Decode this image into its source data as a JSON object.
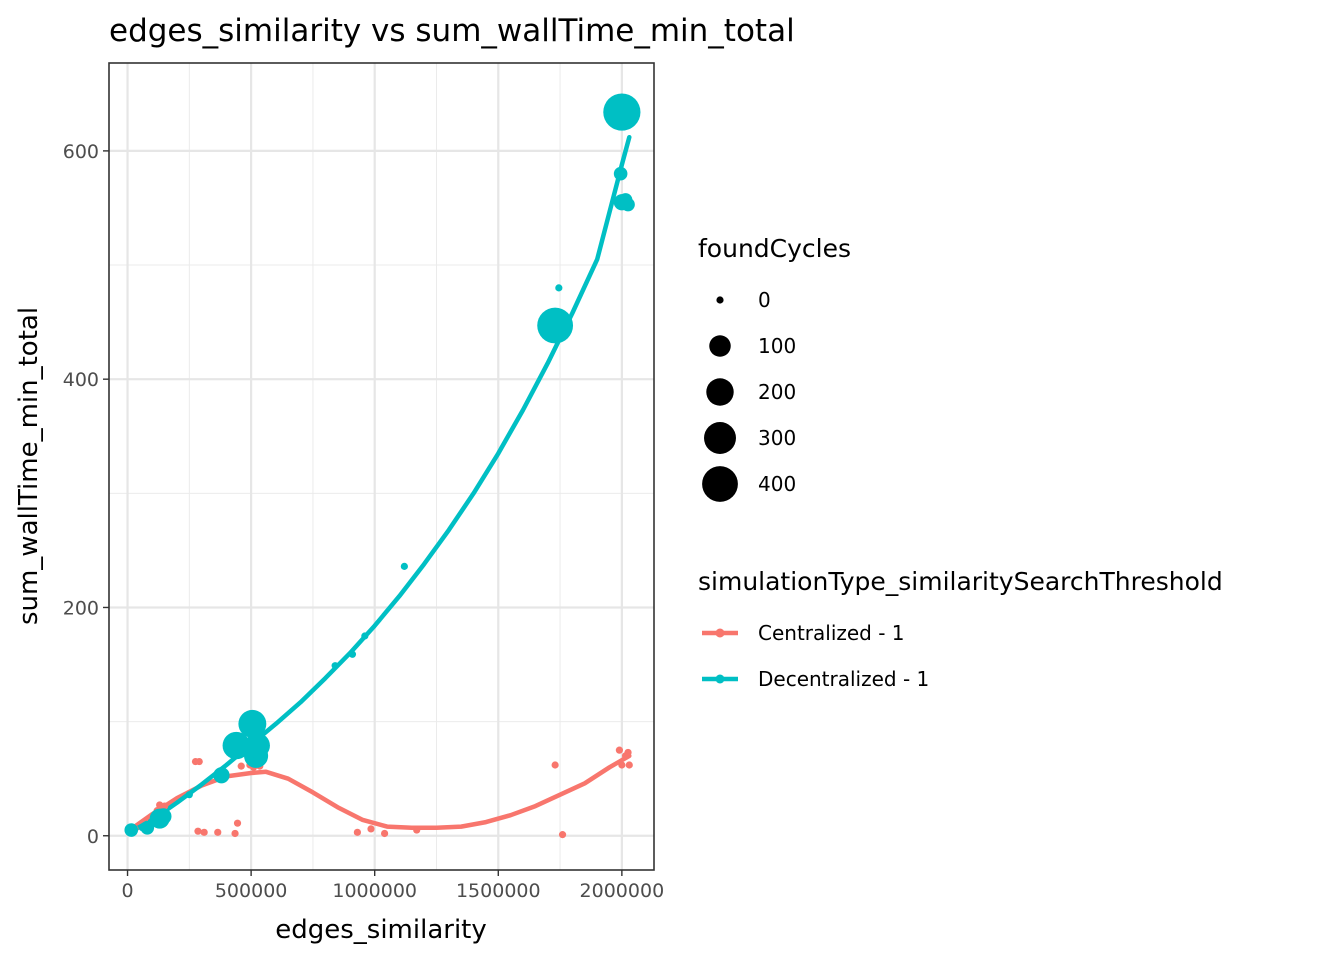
{
  "chart_data": {
    "type": "scatter",
    "title": "edges_similarity  vs  sum_wallTime_min_total",
    "xlabel": "edges_similarity",
    "ylabel": "sum_wallTime_min_total",
    "xlim": [
      -75000,
      2130000
    ],
    "ylim": [
      -30,
      677
    ],
    "x_ticks": [
      0,
      500000,
      1000000,
      1500000,
      2000000
    ],
    "x_tick_labels": [
      "0",
      "500000",
      "1000000",
      "1500000",
      "2000000"
    ],
    "y_ticks": [
      0,
      200,
      400,
      600
    ],
    "y_tick_labels": [
      "0",
      "200",
      "400",
      "600"
    ],
    "grid": true,
    "legend_position": "right",
    "size_legend": {
      "title": "foundCycles",
      "levels": [
        {
          "value": 0,
          "label": "0"
        },
        {
          "value": 100,
          "label": "100"
        },
        {
          "value": 200,
          "label": "200"
        },
        {
          "value": 300,
          "label": "300"
        },
        {
          "value": 400,
          "label": "400"
        }
      ]
    },
    "color_legend": {
      "title": "simulationType_similaritySearchThreshold"
    },
    "series": [
      {
        "name": "Centralized - 1",
        "color": "#F8766D",
        "points": [
          {
            "x": 10000,
            "y": 4,
            "size": 0
          },
          {
            "x": 30000,
            "y": 6,
            "size": 0
          },
          {
            "x": 90000,
            "y": 12,
            "size": 0
          },
          {
            "x": 120000,
            "y": 22,
            "size": 0
          },
          {
            "x": 130000,
            "y": 27,
            "size": 0
          },
          {
            "x": 150000,
            "y": 26,
            "size": 0
          },
          {
            "x": 275000,
            "y": 65,
            "size": 0
          },
          {
            "x": 290000,
            "y": 65,
            "size": 0
          },
          {
            "x": 285000,
            "y": 4,
            "size": 0
          },
          {
            "x": 310000,
            "y": 3,
            "size": 0
          },
          {
            "x": 365000,
            "y": 3,
            "size": 0
          },
          {
            "x": 435000,
            "y": 2,
            "size": 0
          },
          {
            "x": 445000,
            "y": 11,
            "size": 0
          },
          {
            "x": 460000,
            "y": 61,
            "size": 0
          },
          {
            "x": 495000,
            "y": 62,
            "size": 0
          },
          {
            "x": 510000,
            "y": 60,
            "size": 0
          },
          {
            "x": 520000,
            "y": 88,
            "size": 0
          },
          {
            "x": 535000,
            "y": 61,
            "size": 0
          },
          {
            "x": 930000,
            "y": 3,
            "size": 0
          },
          {
            "x": 985000,
            "y": 6,
            "size": 0
          },
          {
            "x": 1040000,
            "y": 2,
            "size": 0
          },
          {
            "x": 1170000,
            "y": 5,
            "size": 0
          },
          {
            "x": 1730000,
            "y": 62,
            "size": 0
          },
          {
            "x": 1760000,
            "y": 1,
            "size": 0
          },
          {
            "x": 1990000,
            "y": 75,
            "size": 0
          },
          {
            "x": 2000000,
            "y": 62,
            "size": 0
          },
          {
            "x": 2015000,
            "y": 70,
            "size": 0
          },
          {
            "x": 2025000,
            "y": 73,
            "size": 0
          },
          {
            "x": 2030000,
            "y": 62,
            "size": 0
          }
        ],
        "smooth": [
          [
            10000,
            5
          ],
          [
            100000,
            19
          ],
          [
            200000,
            33
          ],
          [
            300000,
            44
          ],
          [
            400000,
            52
          ],
          [
            500000,
            55
          ],
          [
            560000,
            56
          ],
          [
            650000,
            50
          ],
          [
            750000,
            38
          ],
          [
            850000,
            25
          ],
          [
            950000,
            14
          ],
          [
            1050000,
            8
          ],
          [
            1150000,
            7
          ],
          [
            1250000,
            7
          ],
          [
            1350000,
            8
          ],
          [
            1450000,
            12
          ],
          [
            1550000,
            18
          ],
          [
            1650000,
            26
          ],
          [
            1750000,
            36
          ],
          [
            1850000,
            46
          ],
          [
            1950000,
            60
          ],
          [
            2030000,
            70
          ]
        ]
      },
      {
        "name": "Decentralized - 1",
        "color": "#00BFC4",
        "points": [
          {
            "x": 15000,
            "y": 5,
            "size": 20
          },
          {
            "x": 25000,
            "y": 4,
            "size": 0
          },
          {
            "x": 60000,
            "y": 7,
            "size": 0
          },
          {
            "x": 80000,
            "y": 7,
            "size": 20
          },
          {
            "x": 95000,
            "y": 12,
            "size": 0
          },
          {
            "x": 130000,
            "y": 15,
            "size": 80
          },
          {
            "x": 145000,
            "y": 17,
            "size": 40
          },
          {
            "x": 250000,
            "y": 36,
            "size": 0
          },
          {
            "x": 380000,
            "y": 53,
            "size": 40
          },
          {
            "x": 440000,
            "y": 79,
            "size": 200
          },
          {
            "x": 505000,
            "y": 98,
            "size": 210
          },
          {
            "x": 520000,
            "y": 70,
            "size": 140
          },
          {
            "x": 525000,
            "y": 79,
            "size": 160
          },
          {
            "x": 840000,
            "y": 149,
            "size": 0
          },
          {
            "x": 910000,
            "y": 159,
            "size": 0
          },
          {
            "x": 960000,
            "y": 175,
            "size": 0
          },
          {
            "x": 1120000,
            "y": 236,
            "size": 0
          },
          {
            "x": 1730000,
            "y": 447,
            "size": 400
          },
          {
            "x": 1745000,
            "y": 480,
            "size": 0
          },
          {
            "x": 2000000,
            "y": 634,
            "size": 440
          },
          {
            "x": 1995000,
            "y": 580,
            "size": 20
          },
          {
            "x": 2000000,
            "y": 555,
            "size": 40
          },
          {
            "x": 2015000,
            "y": 557,
            "size": 20
          },
          {
            "x": 2025000,
            "y": 553,
            "size": 20
          }
        ],
        "smooth": [
          [
            10000,
            3
          ],
          [
            100000,
            14
          ],
          [
            200000,
            29
          ],
          [
            300000,
            45
          ],
          [
            400000,
            62
          ],
          [
            500000,
            80
          ],
          [
            600000,
            98
          ],
          [
            700000,
            117
          ],
          [
            800000,
            138
          ],
          [
            900000,
            160
          ],
          [
            1000000,
            184
          ],
          [
            1100000,
            210
          ],
          [
            1200000,
            238
          ],
          [
            1300000,
            268
          ],
          [
            1400000,
            300
          ],
          [
            1500000,
            335
          ],
          [
            1600000,
            373
          ],
          [
            1700000,
            414
          ],
          [
            1800000,
            458
          ],
          [
            1900000,
            505
          ],
          [
            2000000,
            588
          ],
          [
            2030000,
            612
          ]
        ]
      }
    ]
  }
}
